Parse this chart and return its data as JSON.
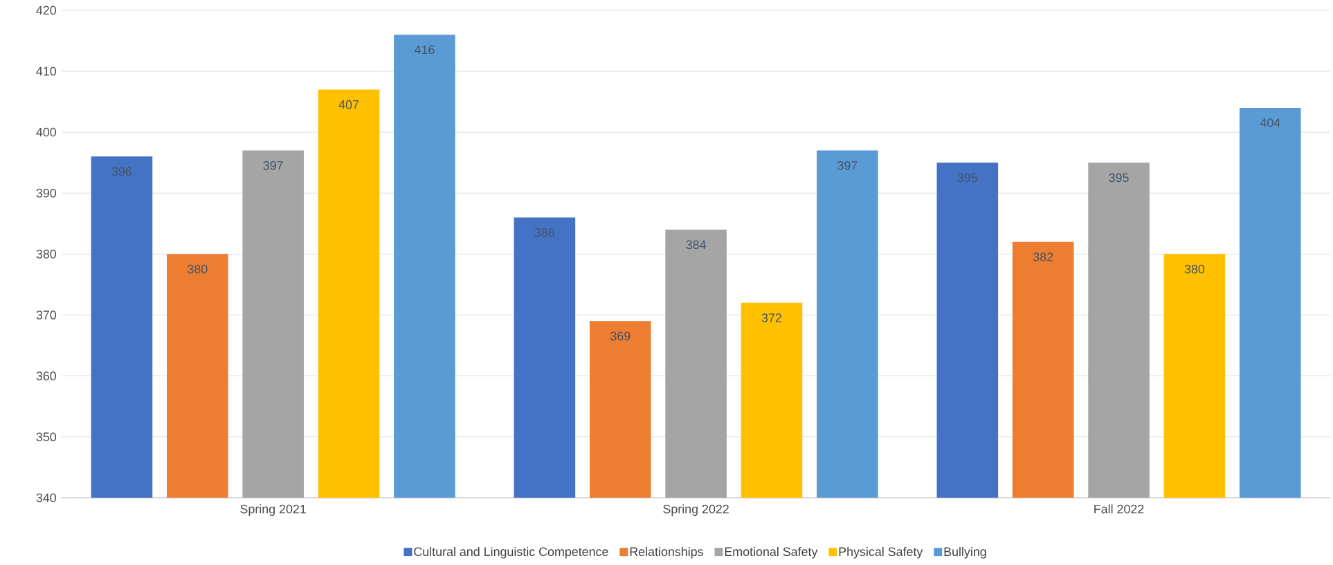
{
  "chart_data": {
    "type": "bar",
    "categories": [
      "Spring 2021",
      "Spring 2022",
      "Fall 2022"
    ],
    "series": [
      {
        "name": "Cultural and Linguistic Competence",
        "color": "#4472c4",
        "values": [
          396,
          386,
          395
        ]
      },
      {
        "name": "Relationships",
        "color": "#ed7d31",
        "values": [
          380,
          369,
          382
        ]
      },
      {
        "name": "Emotional Safety",
        "color": "#a5a5a5",
        "values": [
          397,
          384,
          395
        ]
      },
      {
        "name": "Physical Safety",
        "color": "#ffc000",
        "values": [
          407,
          372,
          380
        ]
      },
      {
        "name": "Bullying",
        "color": "#5b9bd5",
        "values": [
          416,
          397,
          404
        ]
      }
    ],
    "ylim": [
      340,
      420
    ],
    "yticks": [
      340,
      350,
      360,
      370,
      380,
      390,
      400,
      410,
      420
    ],
    "grid": "y",
    "legend": "bottom",
    "data_labels": true
  }
}
